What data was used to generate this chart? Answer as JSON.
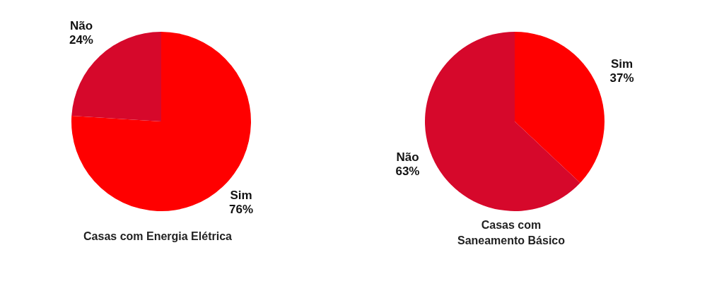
{
  "chart_data": [
    {
      "type": "pie",
      "title": "Casas com Energia Elétrica",
      "categories": [
        "Sim",
        "Não"
      ],
      "values": [
        76,
        24
      ],
      "value_labels": [
        "76%",
        "24%"
      ],
      "colors": [
        "#ff0000",
        "#d6082b"
      ]
    },
    {
      "type": "pie",
      "title": "Casas com Saneamento Básico",
      "categories": [
        "Sim",
        "Não"
      ],
      "values": [
        37,
        63
      ],
      "value_labels": [
        "37%",
        "63%"
      ],
      "colors": [
        "#ff0000",
        "#d6082b"
      ]
    }
  ]
}
